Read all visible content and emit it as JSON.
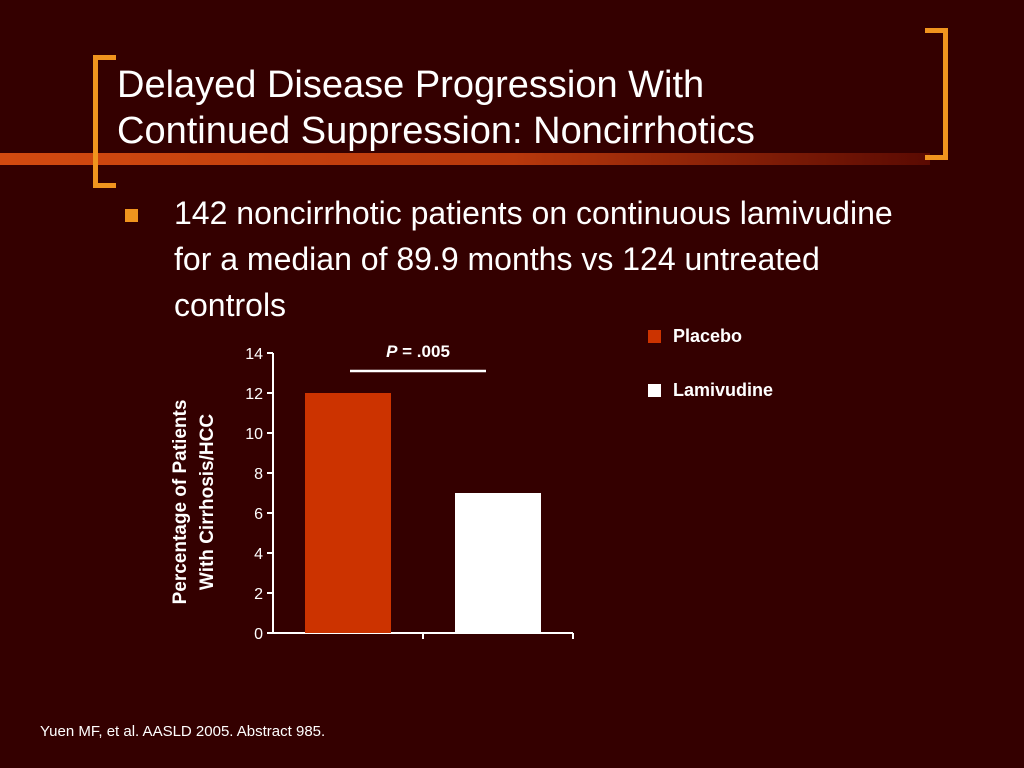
{
  "slide": {
    "title_line1": "Delayed Disease Progression With",
    "title_line2": "Continued Suppression: Noncirrhotics",
    "bullet": "142 noncirrhotic patients on continuous lamivudine for a median of 89.9 months vs 124 untreated controls",
    "citation": "Yuen MF, et al. AASLD 2005. Abstract 985.",
    "colors": {
      "background": "#340000",
      "accent": "#f0941e",
      "bar_band": "#c1410d"
    }
  },
  "chart_data": {
    "type": "bar",
    "categories": [
      "Placebo",
      "Lamivudine"
    ],
    "values": [
      12,
      7
    ],
    "colors": [
      "#cc3300",
      "#ffffff"
    ],
    "ylabel_line1": "Percentage of Patients",
    "ylabel_line2": "With Cirrhosis/HCC",
    "ylim": [
      0,
      14
    ],
    "yticks": [
      0,
      2,
      4,
      6,
      8,
      10,
      12,
      14
    ],
    "annotation_p": "P",
    "annotation_value": " = .005",
    "legend": [
      {
        "label": "Placebo",
        "color": "#cc3300"
      },
      {
        "label": "Lamivudine",
        "color": "#ffffff"
      }
    ],
    "legend_position": "top-right",
    "grid": false
  }
}
